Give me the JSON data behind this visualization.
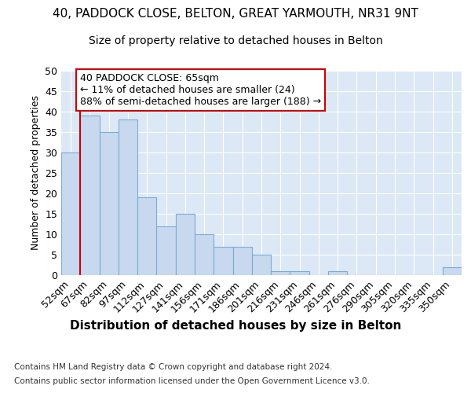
{
  "title": "40, PADDOCK CLOSE, BELTON, GREAT YARMOUTH, NR31 9NT",
  "subtitle": "Size of property relative to detached houses in Belton",
  "xlabel": "Distribution of detached houses by size in Belton",
  "ylabel": "Number of detached properties",
  "categories": [
    "52sqm",
    "67sqm",
    "82sqm",
    "97sqm",
    "112sqm",
    "127sqm",
    "141sqm",
    "156sqm",
    "171sqm",
    "186sqm",
    "201sqm",
    "216sqm",
    "231sqm",
    "246sqm",
    "261sqm",
    "276sqm",
    "290sqm",
    "305sqm",
    "320sqm",
    "335sqm",
    "350sqm"
  ],
  "values": [
    30,
    39,
    35,
    38,
    19,
    12,
    15,
    10,
    7,
    7,
    5,
    1,
    1,
    0,
    1,
    0,
    0,
    0,
    0,
    0,
    2
  ],
  "bar_color": "#c8d9ef",
  "bar_edge_color": "#7aadd4",
  "annotation_text": "40 PADDOCK CLOSE: 65sqm\n← 11% of detached houses are smaller (24)\n88% of semi-detached houses are larger (188) →",
  "annotation_box_color": "#ffffff",
  "annotation_box_edge": "#cc0000",
  "property_line_color": "#cc0000",
  "bg_color": "#ffffff",
  "plot_bg_color": "#dce8f5",
  "grid_color": "#ffffff",
  "footer_line1": "Contains HM Land Registry data © Crown copyright and database right 2024.",
  "footer_line2": "Contains public sector information licensed under the Open Government Licence v3.0.",
  "ylim": [
    0,
    50
  ],
  "yticks": [
    0,
    5,
    10,
    15,
    20,
    25,
    30,
    35,
    40,
    45,
    50
  ],
  "title_fontsize": 11,
  "subtitle_fontsize": 10,
  "ylabel_fontsize": 9,
  "xlabel_fontsize": 11,
  "tick_fontsize": 9,
  "annotation_fontsize": 9,
  "footer_fontsize": 7.5
}
